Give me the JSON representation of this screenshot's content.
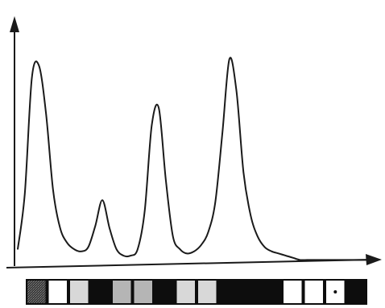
{
  "chart_data": {
    "type": "line",
    "title": "",
    "xlabel": "",
    "ylabel": "",
    "grid": false,
    "legend": "none",
    "xlim": [
      0,
      100
    ],
    "ylim": [
      0,
      100
    ],
    "series": [
      {
        "x": [
          0,
          2,
          4,
          6,
          8,
          10,
          12,
          14,
          16,
          18,
          20,
          22,
          24,
          26,
          28,
          30,
          32,
          34,
          36,
          38,
          40,
          42,
          44,
          46,
          48,
          50,
          52,
          54,
          56,
          58,
          60,
          62,
          64,
          66,
          68,
          70,
          72,
          74,
          76,
          78,
          80,
          82,
          84,
          86,
          88,
          90,
          92,
          94,
          96,
          98,
          100
        ],
        "y": [
          6,
          32,
          86,
          92,
          70,
          34,
          16,
          9,
          6,
          5,
          7,
          17,
          29,
          16,
          6,
          3,
          3,
          6,
          24,
          64,
          72,
          38,
          12,
          6,
          4,
          5,
          8,
          14,
          28,
          60,
          95,
          80,
          42,
          22,
          12,
          7,
          5,
          4,
          3,
          2,
          1,
          1,
          1,
          1,
          1,
          1,
          1,
          1,
          1,
          1,
          1
        ]
      }
    ],
    "color": "#1a1a1a"
  },
  "band_strip": {
    "cells": [
      "dark-speckled",
      "white",
      "light-gray",
      "black",
      "mid-gray",
      "mid-gray",
      "black",
      "light-gray",
      "light-gray",
      "black",
      "black",
      "black",
      "white",
      "white",
      "white-dot",
      "black"
    ]
  }
}
